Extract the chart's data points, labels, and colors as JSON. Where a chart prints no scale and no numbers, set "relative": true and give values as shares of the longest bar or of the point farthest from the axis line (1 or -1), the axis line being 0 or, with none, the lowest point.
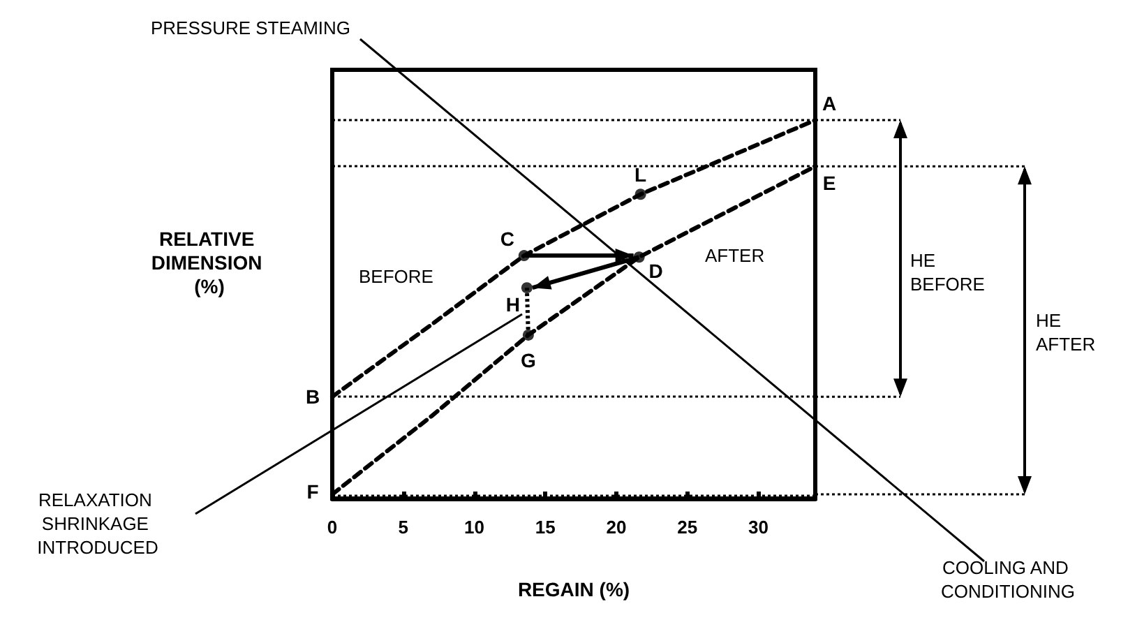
{
  "chart_data": {
    "type": "line",
    "relative": true,
    "xlabel": "REGAIN (%)",
    "ylabel": "RELATIVE DIMENSION (%)",
    "xlim": [
      0,
      34
    ],
    "xticks": [
      0,
      5,
      10,
      15,
      20,
      25,
      30
    ],
    "line_style": "dashed",
    "marker": "none",
    "grid": false,
    "series": [
      {
        "color": "#000000",
        "x": [
          0,
          7,
          13.5,
          21.7,
          34
        ],
        "values": [
          0.269,
          0.46,
          0.642,
          0.804,
          1.0
        ]
      },
      {
        "color": "#000000",
        "x": [
          0,
          7,
          13.8,
          21.6,
          34
        ],
        "values": [
          0.011,
          0.218,
          0.432,
          0.638,
          0.878
        ]
      },
      {
        "type": "scatter",
        "marker": "circle",
        "color": "#000000",
        "x": [
          13.5,
          21.7,
          21.6,
          13.7,
          13.8
        ],
        "values": [
          0.642,
          0.804,
          0.638,
          0.557,
          0.432
        ]
      }
    ],
    "ref_lines": [
      {
        "axis": "y",
        "value": 1.0,
        "line_style": "dotted"
      },
      {
        "axis": "y",
        "value": 0.878,
        "line_style": "dotted"
      },
      {
        "axis": "y",
        "value": 0.269,
        "line_style": "dotted"
      },
      {
        "axis": "y",
        "value": 0.011,
        "line_style": "dotted"
      }
    ],
    "annotations": [
      "PRESSURE STEAMING",
      "BEFORE",
      "AFTER",
      "RELAXATION SHRINKAGE INTRODUCED",
      "COOLING AND CONDITIONING",
      "HE BEFORE",
      "HE AFTER",
      {
        "text": "A",
        "x": 34,
        "y": 1.0
      },
      {
        "text": "B",
        "x": 0,
        "y": 0.269
      },
      {
        "text": "C",
        "x": 13.5,
        "y": 0.642
      },
      {
        "text": "D",
        "x": 21.6,
        "y": 0.638
      },
      {
        "text": "E",
        "x": 34,
        "y": 0.878
      },
      {
        "text": "F",
        "x": 0,
        "y": 0.011
      },
      {
        "text": "G",
        "x": 13.8,
        "y": 0.432
      },
      {
        "text": "H",
        "x": 13.7,
        "y": 0.557
      },
      {
        "text": "L",
        "x": 21.7,
        "y": 0.804
      }
    ]
  }
}
